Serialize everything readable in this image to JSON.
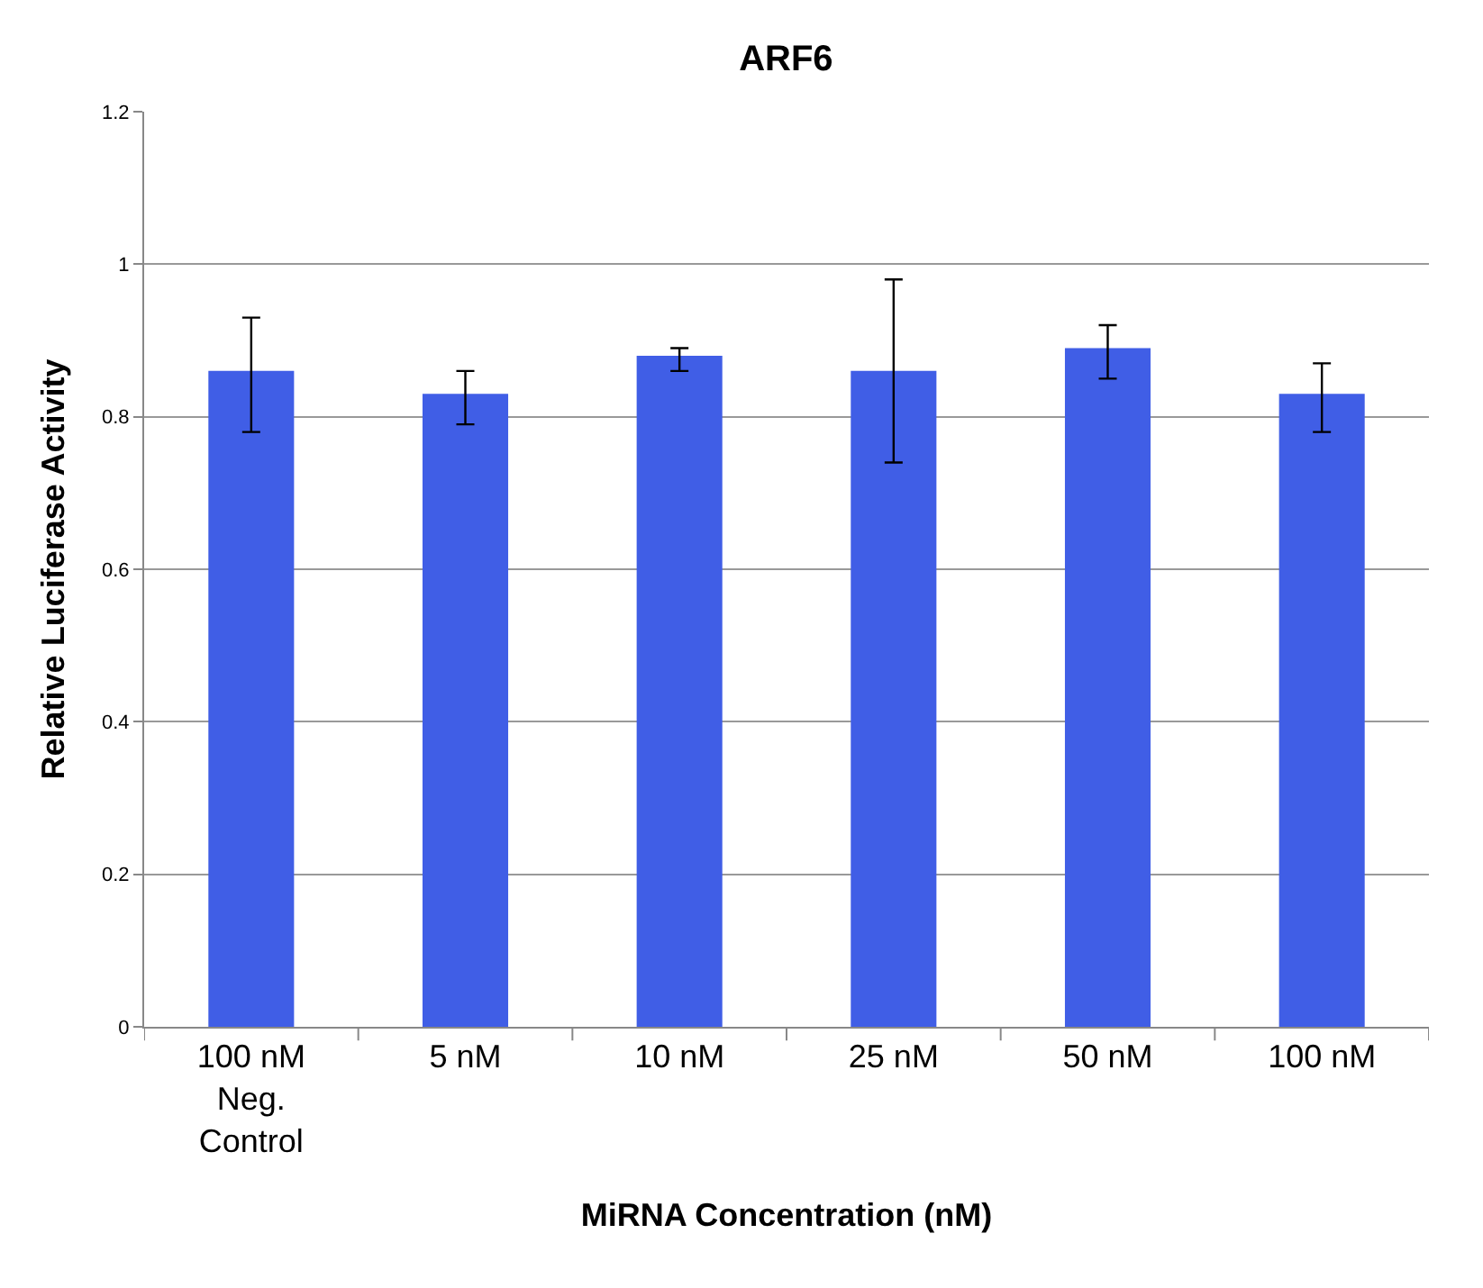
{
  "chart_data": {
    "type": "bar",
    "title": "ARF6",
    "xlabel": "MiRNA Concentration (nM)",
    "ylabel": "Relative Luciferase Activity",
    "categories": [
      "100 nM\nNeg.\nControl",
      "5 nM",
      "10 nM",
      "25 nM",
      "50 nM",
      "100 nM"
    ],
    "values": [
      0.86,
      0.83,
      0.88,
      0.86,
      0.89,
      0.83
    ],
    "errors": [
      [
        0.78,
        0.93
      ],
      [
        0.79,
        0.86
      ],
      [
        0.86,
        0.89
      ],
      [
        0.74,
        0.98
      ],
      [
        0.85,
        0.92
      ],
      [
        0.78,
        0.87
      ]
    ],
    "color": "#405ee6",
    "ylim": [
      0,
      1.2
    ],
    "yticks": [
      0,
      0.2,
      0.4,
      0.6,
      0.8,
      1,
      1.2
    ],
    "grid": "y",
    "legend": false
  }
}
